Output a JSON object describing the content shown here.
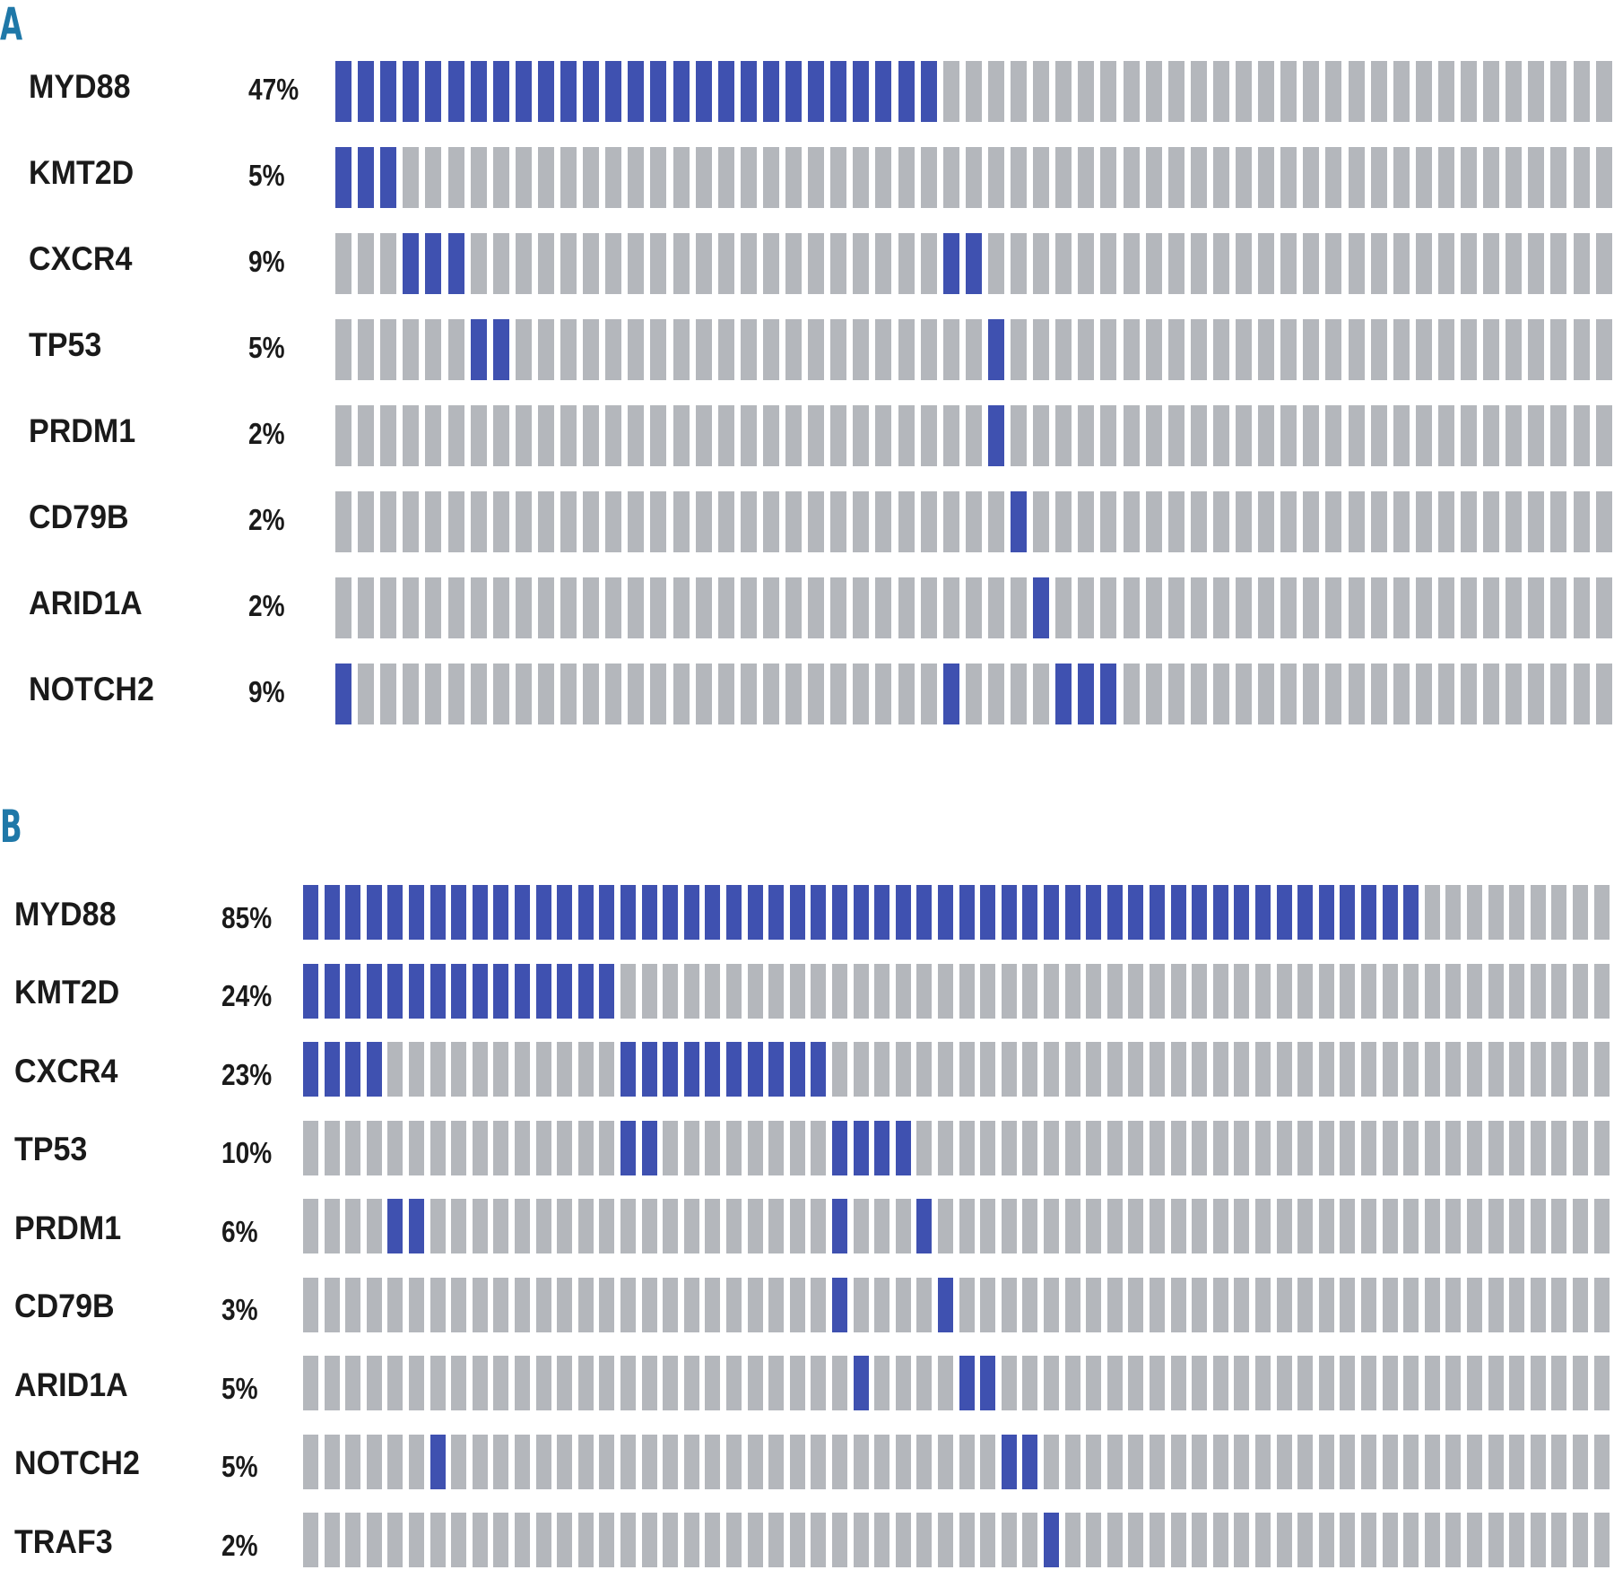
{
  "colors": {
    "mutated": "#3f51b0",
    "wildtype": "#b4b7bc",
    "panel_label": "#1f78a8"
  },
  "chart_data": [
    {
      "type": "heatmap",
      "panel": "A",
      "n_samples": 57,
      "rows": [
        {
          "gene": "MYD88",
          "percent": "47%",
          "mutated_samples": [
            0,
            1,
            2,
            3,
            4,
            5,
            6,
            7,
            8,
            9,
            10,
            11,
            12,
            13,
            14,
            15,
            16,
            17,
            18,
            19,
            20,
            21,
            22,
            23,
            24,
            25,
            26
          ]
        },
        {
          "gene": "KMT2D",
          "percent": "5%",
          "mutated_samples": [
            0,
            1,
            2
          ]
        },
        {
          "gene": "CXCR4",
          "percent": "9%",
          "mutated_samples": [
            3,
            4,
            5,
            27,
            28
          ]
        },
        {
          "gene": "TP53",
          "percent": "5%",
          "mutated_samples": [
            6,
            7,
            29
          ]
        },
        {
          "gene": "PRDM1",
          "percent": "2%",
          "mutated_samples": [
            29
          ]
        },
        {
          "gene": "CD79B",
          "percent": "2%",
          "mutated_samples": [
            30
          ]
        },
        {
          "gene": "ARID1A",
          "percent": "2%",
          "mutated_samples": [
            31
          ]
        },
        {
          "gene": "NOTCH2",
          "percent": "9%",
          "mutated_samples": [
            0,
            27,
            32,
            33,
            34
          ]
        }
      ]
    },
    {
      "type": "heatmap",
      "panel": "B",
      "n_samples": 62,
      "rows": [
        {
          "gene": "MYD88",
          "percent": "85%",
          "mutated_samples": [
            0,
            1,
            2,
            3,
            4,
            5,
            6,
            7,
            8,
            9,
            10,
            11,
            12,
            13,
            14,
            15,
            16,
            17,
            18,
            19,
            20,
            21,
            22,
            23,
            24,
            25,
            26,
            27,
            28,
            29,
            30,
            31,
            32,
            33,
            34,
            35,
            36,
            37,
            38,
            39,
            40,
            41,
            42,
            43,
            44,
            45,
            46,
            47,
            48,
            49,
            50,
            51,
            52
          ]
        },
        {
          "gene": "KMT2D",
          "percent": "24%",
          "mutated_samples": [
            0,
            1,
            2,
            3,
            4,
            5,
            6,
            7,
            8,
            9,
            10,
            11,
            12,
            13,
            14
          ]
        },
        {
          "gene": "CXCR4",
          "percent": "23%",
          "mutated_samples": [
            0,
            1,
            2,
            3,
            15,
            16,
            17,
            18,
            19,
            20,
            21,
            22,
            23,
            24
          ]
        },
        {
          "gene": "TP53",
          "percent": "10%",
          "mutated_samples": [
            15,
            16,
            25,
            26,
            27,
            28
          ]
        },
        {
          "gene": "PRDM1",
          "percent": "6%",
          "mutated_samples": [
            4,
            5,
            25,
            29
          ]
        },
        {
          "gene": "CD79B",
          "percent": "3%",
          "mutated_samples": [
            25,
            30
          ]
        },
        {
          "gene": "ARID1A",
          "percent": "5%",
          "mutated_samples": [
            26,
            31,
            32
          ]
        },
        {
          "gene": "NOTCH2",
          "percent": "5%",
          "mutated_samples": [
            6,
            33,
            34
          ]
        },
        {
          "gene": "TRAF3",
          "percent": "2%",
          "mutated_samples": [
            35
          ]
        }
      ]
    }
  ]
}
